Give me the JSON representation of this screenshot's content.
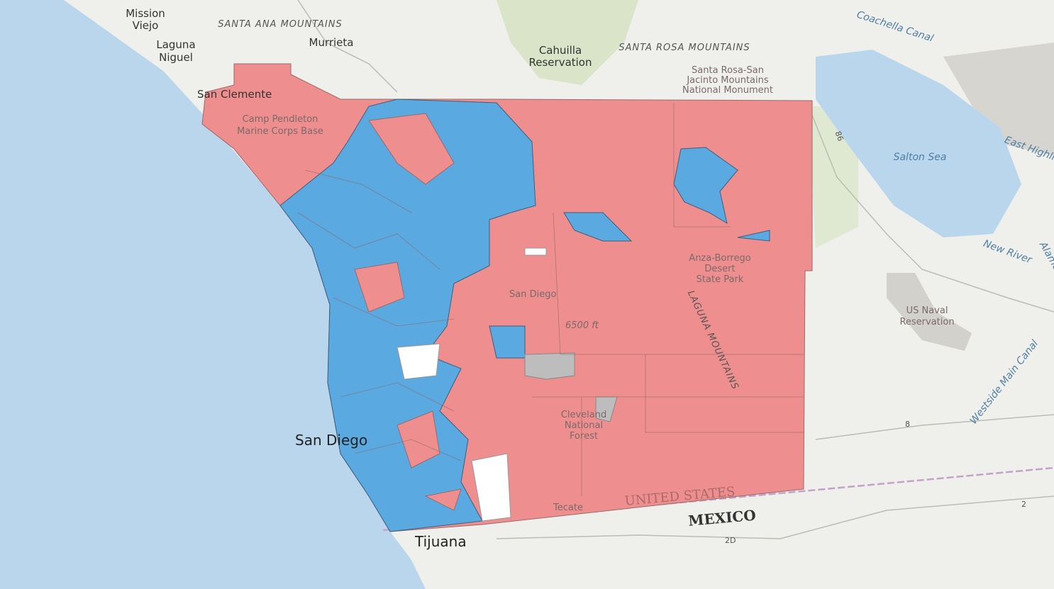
{
  "labels": [
    {
      "lines": [
        "Mission",
        "Viejo"
      ]
    },
    {
      "lines": [
        "SANTA ANA MOUNTAINS"
      ]
    },
    {
      "lines": [
        "Murrieta"
      ]
    },
    {
      "lines": [
        "Laguna",
        "Niguel"
      ]
    },
    {
      "lines": [
        "San Clemente"
      ]
    },
    {
      "lines": [
        "Camp Pendleton",
        "Marine Corps Base"
      ]
    },
    {
      "lines": [
        "Cahuilla",
        "Reservation"
      ]
    },
    {
      "lines": [
        "SANTA ROSA MOUNTAINS"
      ]
    },
    {
      "lines": [
        "Santa Rosa-San",
        "Jacinto Mountains",
        "National Monument"
      ]
    },
    {
      "lines": [
        "Coachella Canal"
      ]
    },
    {
      "lines": [
        "Salton Sea"
      ]
    },
    {
      "lines": [
        "East Highline"
      ]
    },
    {
      "lines": [
        "86"
      ]
    },
    {
      "lines": [
        "Anza-Borrego",
        "Desert",
        "State Park"
      ]
    },
    {
      "lines": [
        "US Naval",
        "Reservation"
      ]
    },
    {
      "lines": [
        "New River"
      ]
    },
    {
      "lines": [
        "Alamo R"
      ]
    },
    {
      "lines": [
        "Westside Main Canal"
      ]
    },
    {
      "lines": [
        "8"
      ]
    },
    {
      "lines": [
        "San Diego"
      ]
    },
    {
      "lines": [
        "San Diego"
      ]
    },
    {
      "lines": [
        "6500 ft"
      ]
    },
    {
      "lines": [
        "LAGUNA MOUNTAINS"
      ]
    },
    {
      "lines": [
        "Cleveland",
        "National",
        "Forest"
      ]
    },
    {
      "lines": [
        "UNITED STATES"
      ]
    },
    {
      "lines": [
        "MEXICO"
      ]
    },
    {
      "lines": [
        "Tecate"
      ]
    },
    {
      "lines": [
        "Tijuana"
      ]
    },
    {
      "lines": [
        "2D"
      ]
    },
    {
      "lines": [
        "2"
      ]
    }
  ]
}
